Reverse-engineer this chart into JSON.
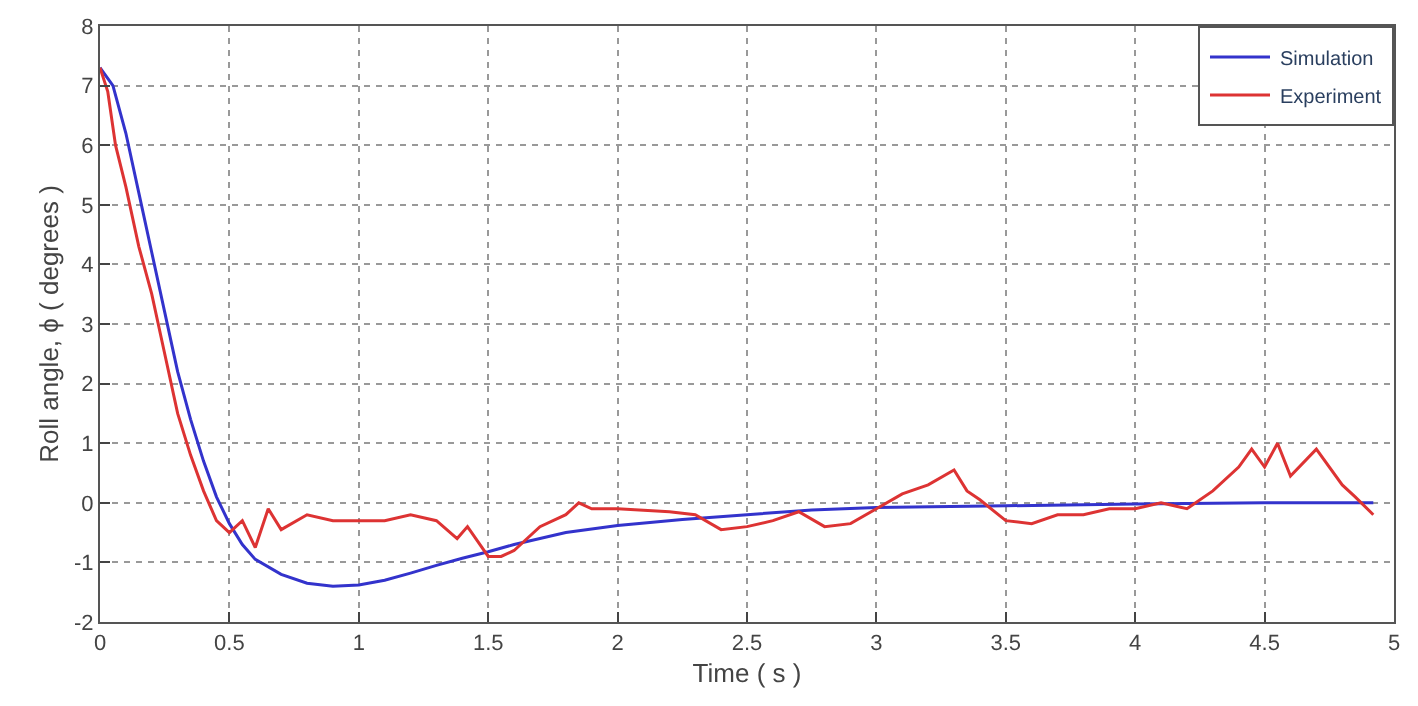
{
  "chart_data": {
    "type": "line",
    "xlabel": "Time ( s )",
    "ylabel": "Roll angle, ϕ ( degrees )",
    "xlim": [
      0,
      5
    ],
    "ylim": [
      -2,
      8
    ],
    "xticks": [
      0,
      0.5,
      1,
      1.5,
      2,
      2.5,
      3,
      3.5,
      4,
      4.5,
      5
    ],
    "yticks": [
      -2,
      -1,
      0,
      1,
      2,
      3,
      4,
      5,
      6,
      7,
      8
    ],
    "grid": true,
    "legend": "top right",
    "line_style": "solid",
    "marker": "none",
    "series": [
      {
        "name": "Simulation",
        "color": "#3333cc",
        "x": [
          0,
          0.05,
          0.1,
          0.15,
          0.2,
          0.25,
          0.3,
          0.35,
          0.4,
          0.45,
          0.5,
          0.55,
          0.6,
          0.7,
          0.8,
          0.9,
          1.0,
          1.1,
          1.2,
          1.3,
          1.4,
          1.5,
          1.6,
          1.8,
          2.0,
          2.25,
          2.5,
          2.75,
          3.0,
          3.5,
          4.0,
          4.5,
          4.92
        ],
        "values": [
          7.3,
          7.0,
          6.2,
          5.2,
          4.2,
          3.2,
          2.2,
          1.4,
          0.7,
          0.1,
          -0.35,
          -0.7,
          -0.95,
          -1.2,
          -1.35,
          -1.4,
          -1.38,
          -1.3,
          -1.18,
          -1.05,
          -0.93,
          -0.82,
          -0.7,
          -0.5,
          -0.38,
          -0.28,
          -0.2,
          -0.12,
          -0.08,
          -0.05,
          -0.02,
          0,
          0
        ]
      },
      {
        "name": "Experiment",
        "color": "#dd3333",
        "x": [
          0,
          0.03,
          0.06,
          0.1,
          0.15,
          0.2,
          0.25,
          0.3,
          0.35,
          0.4,
          0.45,
          0.5,
          0.55,
          0.6,
          0.65,
          0.7,
          0.8,
          0.9,
          1.0,
          1.1,
          1.2,
          1.3,
          1.38,
          1.42,
          1.5,
          1.55,
          1.6,
          1.7,
          1.8,
          1.85,
          1.9,
          2.0,
          2.2,
          2.3,
          2.4,
          2.5,
          2.6,
          2.7,
          2.8,
          2.9,
          3.0,
          3.1,
          3.2,
          3.3,
          3.35,
          3.4,
          3.5,
          3.6,
          3.7,
          3.8,
          3.9,
          4.0,
          4.1,
          4.2,
          4.3,
          4.4,
          4.45,
          4.5,
          4.55,
          4.6,
          4.7,
          4.8,
          4.85,
          4.92
        ],
        "values": [
          7.3,
          6.9,
          6.0,
          5.3,
          4.3,
          3.5,
          2.5,
          1.5,
          0.8,
          0.2,
          -0.3,
          -0.5,
          -0.3,
          -0.75,
          -0.1,
          -0.45,
          -0.2,
          -0.3,
          -0.3,
          -0.3,
          -0.2,
          -0.3,
          -0.6,
          -0.4,
          -0.9,
          -0.9,
          -0.8,
          -0.4,
          -0.2,
          0.0,
          -0.1,
          -0.1,
          -0.15,
          -0.2,
          -0.45,
          -0.4,
          -0.3,
          -0.15,
          -0.4,
          -0.35,
          -0.1,
          0.15,
          0.3,
          0.55,
          0.2,
          0.05,
          -0.3,
          -0.35,
          -0.2,
          -0.2,
          -0.1,
          -0.1,
          0.0,
          -0.1,
          0.2,
          0.6,
          0.9,
          0.6,
          1.0,
          0.45,
          0.9,
          0.3,
          0.1,
          -0.2
        ]
      }
    ]
  }
}
